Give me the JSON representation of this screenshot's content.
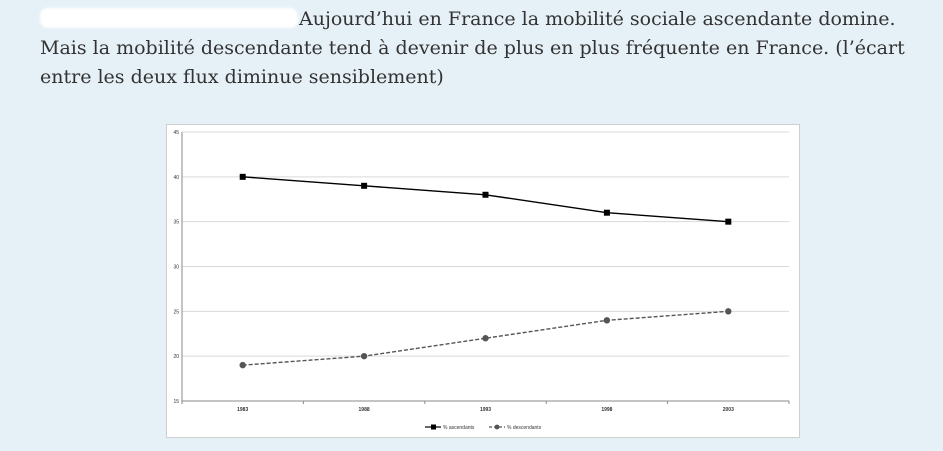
{
  "paragraph": {
    "text": "Aujourd’hui en France la mobilité sociale ascendante domine. Mais la mobilité descendante tend à devenir de plus en plus fréquente en France. (l’écart entre les deux flux diminue sensiblement)"
  },
  "chart_data": {
    "type": "line",
    "categories": [
      "1983",
      "1988",
      "1993",
      "1998",
      "2003"
    ],
    "ylim": [
      15,
      45
    ],
    "yticks": [
      15,
      20,
      25,
      30,
      35,
      40,
      45
    ],
    "grid": true,
    "legend_position": "bottom-center",
    "title": "",
    "xlabel": "",
    "ylabel": "",
    "series": [
      {
        "name": "% ascendants",
        "values": [
          40,
          39,
          38,
          36,
          35
        ],
        "color": "#000000",
        "marker": "square",
        "dash": "solid"
      },
      {
        "name": "% descendants",
        "values": [
          19,
          20,
          22,
          24,
          25
        ],
        "color": "#555555",
        "marker": "circle",
        "dash": "dashed"
      }
    ]
  }
}
